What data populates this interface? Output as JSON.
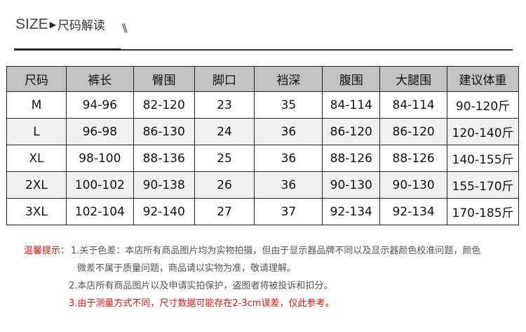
{
  "header": {
    "size": "SIZE",
    "arrow": "▶",
    "title": "尺码解读",
    "slashes": "\\\\"
  },
  "table": {
    "columns": [
      "尺码",
      "裤长",
      "臀围",
      "脚口",
      "裆深",
      "腹围",
      "大腿围",
      "建议体重"
    ],
    "rows": [
      [
        "M",
        "94-96",
        "82-120",
        "23",
        "35",
        "84-114",
        "84-114",
        "90-120斤"
      ],
      [
        "L",
        "96-98",
        "86-130",
        "24",
        "36",
        "86-120",
        "86-120",
        "120-140斤"
      ],
      [
        "XL",
        "98-100",
        "88-136",
        "25",
        "36",
        "88-126",
        "88-126",
        "140-155斤"
      ],
      [
        "2XL",
        "100-102",
        "90-138",
        "26",
        "36",
        "90-130",
        "90-130",
        "155-170斤"
      ],
      [
        "3XL",
        "102-104",
        "92-140",
        "27",
        "37",
        "92-134",
        "92-134",
        "170-185斤"
      ]
    ]
  },
  "notes": {
    "label": "温馨提示：",
    "note1a": "1.关于色差：本店所有商品图片均为实物拍摄，但由于显示器品牌不同以及显示器颜色校准问题，颜色",
    "note1b": "微差不属于质量问题，商品请以实物为准，敬请理解。",
    "note2": "2.本店所有商品图片以及申请实拍保护，盗图者将被投诉和扣分。",
    "note3": "3.由于测量方式不同，尺寸数据可能存在2-3cm误差，仅此参考。"
  },
  "colors": {
    "header_bg": "#c2c2c2",
    "alt_row": "#f0f0f0",
    "warning": "#e0140f"
  }
}
